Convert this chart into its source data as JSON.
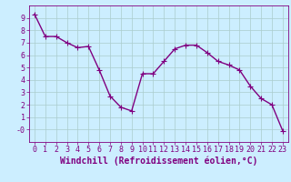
{
  "x": [
    0,
    1,
    2,
    3,
    4,
    5,
    6,
    7,
    8,
    9,
    10,
    11,
    12,
    13,
    14,
    15,
    16,
    17,
    18,
    19,
    20,
    21,
    22,
    23
  ],
  "y": [
    9.3,
    7.5,
    7.5,
    7.0,
    6.6,
    6.7,
    4.8,
    2.7,
    1.8,
    1.5,
    4.5,
    4.5,
    5.5,
    6.5,
    6.8,
    6.8,
    6.2,
    5.5,
    5.2,
    4.8,
    3.5,
    2.5,
    2.0,
    -0.1
  ],
  "line_color": "#800080",
  "marker": "+",
  "marker_size": 3,
  "bg_color": "#cceeff",
  "grid_color": "#aacccc",
  "xlabel": "Windchill (Refroidissement éolien,°C)",
  "ylim": [
    -1,
    10
  ],
  "xlim": [
    -0.5,
    23.5
  ],
  "ytick_vals": [
    0,
    1,
    2,
    3,
    4,
    5,
    6,
    7,
    8,
    9
  ],
  "ytick_labels": [
    "-0",
    "1",
    "2",
    "3",
    "4",
    "5",
    "6",
    "7",
    "8",
    "9"
  ],
  "xticks": [
    0,
    1,
    2,
    3,
    4,
    5,
    6,
    7,
    8,
    9,
    10,
    11,
    12,
    13,
    14,
    15,
    16,
    17,
    18,
    19,
    20,
    21,
    22,
    23
  ],
  "tick_color": "#800080",
  "tick_fontsize": 6,
  "xlabel_fontsize": 7,
  "line_width": 1.0,
  "marker_size_pts": 4
}
